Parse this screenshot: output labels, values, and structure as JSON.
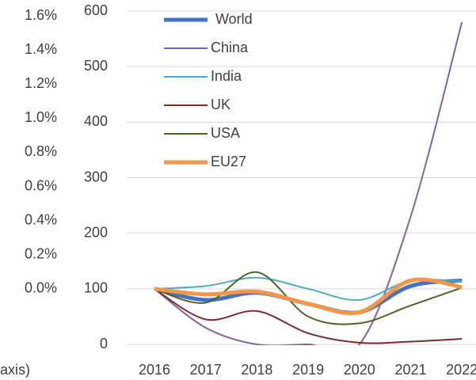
{
  "chart_data": {
    "type": "line",
    "categories": [
      "2016",
      "2017",
      "2018",
      "2019",
      "2020",
      "2021",
      "2022"
    ],
    "series": [
      {
        "name": "World",
        "color": "#4472c4",
        "values": [
          100,
          80,
          93,
          73,
          58,
          105,
          115
        ]
      },
      {
        "name": "China",
        "color": "#8064a2",
        "values": [
          100,
          30,
          0,
          0,
          0,
          230,
          580
        ]
      },
      {
        "name": "India",
        "color": "#4bacc6",
        "values": [
          100,
          105,
          120,
          100,
          80,
          115,
          113
        ]
      },
      {
        "name": "UK",
        "color": "#7b2c2c",
        "values": [
          100,
          45,
          60,
          20,
          3,
          5,
          10
        ]
      },
      {
        "name": "USA",
        "color": "#4f6228",
        "values": [
          100,
          75,
          130,
          50,
          38,
          70,
          102
        ]
      },
      {
        "name": "EU27",
        "color": "#f79646",
        "values": [
          100,
          90,
          95,
          73,
          58,
          115,
          103
        ]
      }
    ],
    "ylim": [
      0,
      600
    ],
    "yticks": [
      0,
      100,
      200,
      300,
      400,
      500,
      600
    ],
    "y2lim": [
      -0.325,
      1.628
    ],
    "y2ticks": [
      {
        "value": 0,
        "label": "0.0%"
      },
      {
        "value": 0.2,
        "label": "0.2%"
      },
      {
        "value": 0.4,
        "label": "0.4%"
      },
      {
        "value": 0.6,
        "label": "0.6%"
      },
      {
        "value": 0.8,
        "label": "0.8%"
      },
      {
        "value": 1.0,
        "label": "1.0%"
      },
      {
        "value": 1.2,
        "label": "1.2%"
      },
      {
        "value": 1.4,
        "label": "1.4%"
      },
      {
        "value": 1.6,
        "label": "1.6%"
      }
    ],
    "annotation": "axis)",
    "grid": true
  }
}
